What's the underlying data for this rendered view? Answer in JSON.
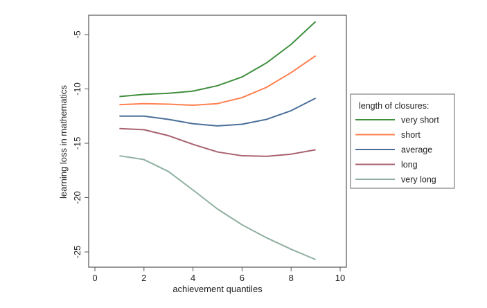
{
  "chart_data": {
    "type": "line",
    "title": "",
    "xlabel": "achievement quantiles",
    "ylabel": "learning loss in mathematics",
    "xlim": [
      -0.25,
      10.25
    ],
    "ylim": [
      -26.9,
      -3.3
    ],
    "xticks": [
      0,
      2,
      4,
      6,
      8,
      10
    ],
    "xtick_labels": [
      "0",
      "2",
      "4",
      "6",
      "8",
      "10"
    ],
    "yticks": [
      -5,
      -10,
      -15,
      -20,
      -25
    ],
    "ytick_labels": [
      "-5",
      "-10",
      "-15",
      "-20",
      "-25"
    ],
    "grid": false,
    "legend": {
      "title": "length of closures:",
      "placement": "right"
    },
    "x": [
      1,
      2,
      3,
      4,
      5,
      6,
      7,
      8,
      9
    ],
    "series": [
      {
        "name": "very short",
        "color": "#3f8f3f",
        "values": [
          -10.7,
          -10.5,
          -10.4,
          -10.2,
          -9.7,
          -8.9,
          -7.6,
          -5.9,
          -3.8
        ]
      },
      {
        "name": "short",
        "color": "#ff7f4f",
        "values": [
          -11.45,
          -11.35,
          -11.4,
          -11.5,
          -11.35,
          -10.8,
          -9.85,
          -8.5,
          -6.95
        ]
      },
      {
        "name": "average",
        "color": "#4a6f99",
        "values": [
          -12.5,
          -12.5,
          -12.8,
          -13.2,
          -13.4,
          -13.25,
          -12.8,
          -12.0,
          -10.85
        ]
      },
      {
        "name": "long",
        "color": "#a8606e",
        "values": [
          -13.65,
          -13.75,
          -14.3,
          -15.1,
          -15.8,
          -16.15,
          -16.2,
          -16.0,
          -15.6
        ]
      },
      {
        "name": "very long",
        "color": "#8fb0a0",
        "values": [
          -16.15,
          -16.5,
          -17.6,
          -19.3,
          -21.05,
          -22.5,
          -23.7,
          -24.75,
          -25.7
        ]
      }
    ]
  }
}
